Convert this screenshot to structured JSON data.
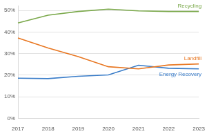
{
  "chart_data": {
    "type": "line",
    "categories": [
      "2017",
      "2018",
      "2019",
      "2020",
      "2021",
      "2022",
      "2023"
    ],
    "series": [
      {
        "name": "Recycling",
        "color": "#7aa84a",
        "values": [
          44.2,
          47.8,
          49.5,
          50.6,
          49.8,
          49.5,
          49.5
        ]
      },
      {
        "name": "Landfill",
        "color": "#e87722",
        "values": [
          37.2,
          32.6,
          28.6,
          23.9,
          22.9,
          24.7,
          25.2
        ]
      },
      {
        "name": "Energy Recovery",
        "color": "#3a7dc9",
        "values": [
          18.6,
          18.4,
          19.5,
          20.1,
          24.6,
          23.2,
          22.9
        ]
      }
    ],
    "ylim": [
      0,
      52
    ],
    "yticks": [
      {
        "value": 0,
        "label": "0%"
      },
      {
        "value": 10,
        "label": "10%"
      },
      {
        "value": 20,
        "label": "20%"
      },
      {
        "value": 30,
        "label": "30%"
      },
      {
        "value": 40,
        "label": "40%"
      },
      {
        "value": 50,
        "label": "50%"
      }
    ],
    "grid": true
  }
}
